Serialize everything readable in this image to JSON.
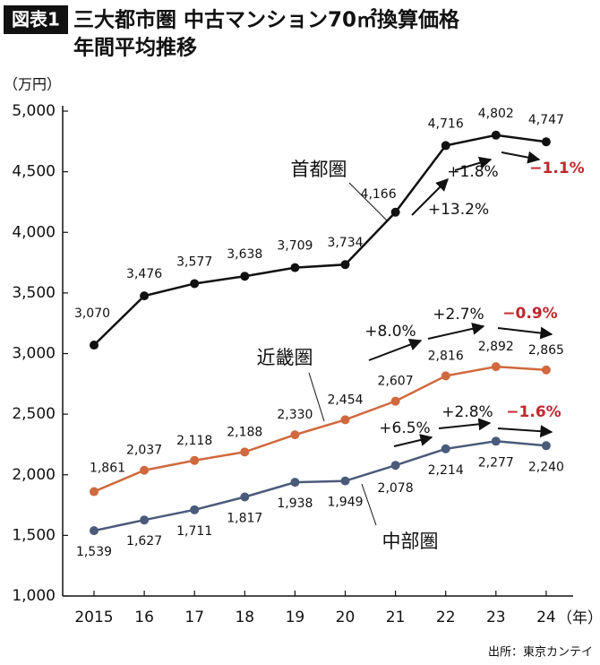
{
  "chart_data": {
    "type": "line",
    "badge": "図表1",
    "title": "三大都市圏 中古マンション70㎡換算価格",
    "subtitle": "年間平均推移",
    "y_unit": "（万円）",
    "x_unit": "（年）",
    "source": "出所：東京カンテイ",
    "categories": [
      "2015",
      "16",
      "17",
      "18",
      "19",
      "20",
      "21",
      "22",
      "23",
      "24"
    ],
    "ylim": [
      1000,
      5000
    ],
    "yticks": [
      {
        "value": 1000,
        "label": "1,000"
      },
      {
        "value": 1500,
        "label": "1,500"
      },
      {
        "value": 2000,
        "label": "2,000"
      },
      {
        "value": 2500,
        "label": "2,500"
      },
      {
        "value": 3000,
        "label": "3,000"
      },
      {
        "value": 3500,
        "label": "3,500"
      },
      {
        "value": 4000,
        "label": "4,000"
      },
      {
        "value": 4500,
        "label": "4,500"
      },
      {
        "value": 5000,
        "label": "5,000"
      }
    ],
    "series": [
      {
        "name": "首都圏",
        "color": "#111111",
        "values": [
          3070,
          3476,
          3577,
          3638,
          3709,
          3734,
          4166,
          4716,
          4802,
          4747
        ],
        "value_labels": [
          "3,070",
          "3,476",
          "3,577",
          "3,638",
          "3,709",
          "3,734",
          "4,166",
          "4,716",
          "4,802",
          "4,747"
        ],
        "changes": [
          {
            "text": "+13.2%",
            "color": "#111111"
          },
          {
            "text": "+1.8%",
            "color": "#111111"
          },
          {
            "text": "−1.1%",
            "color": "#c0282d"
          }
        ]
      },
      {
        "name": "近畿圏",
        "color": "#d0693e",
        "values": [
          1861,
          2037,
          2118,
          2188,
          2330,
          2454,
          2607,
          2816,
          2892,
          2865
        ],
        "value_labels": [
          "1,861",
          "2,037",
          "2,118",
          "2,188",
          "2,330",
          "2,454",
          "2,607",
          "2,816",
          "2,892",
          "2,865"
        ],
        "changes": [
          {
            "text": "+8.0%",
            "color": "#111111"
          },
          {
            "text": "+2.7%",
            "color": "#111111"
          },
          {
            "text": "−0.9%",
            "color": "#c0282d"
          }
        ]
      },
      {
        "name": "中部圏",
        "color": "#4a5a7a",
        "values": [
          1539,
          1627,
          1711,
          1817,
          1938,
          1949,
          2078,
          2214,
          2277,
          2240
        ],
        "value_labels": [
          "1,539",
          "1,627",
          "1,711",
          "1,817",
          "1,938",
          "1,949",
          "2,078",
          "2,214",
          "2,277",
          "2,240"
        ],
        "changes": [
          {
            "text": "+6.5%",
            "color": "#111111"
          },
          {
            "text": "+2.8%",
            "color": "#111111"
          },
          {
            "text": "−1.6%",
            "color": "#c0282d"
          }
        ]
      }
    ]
  }
}
